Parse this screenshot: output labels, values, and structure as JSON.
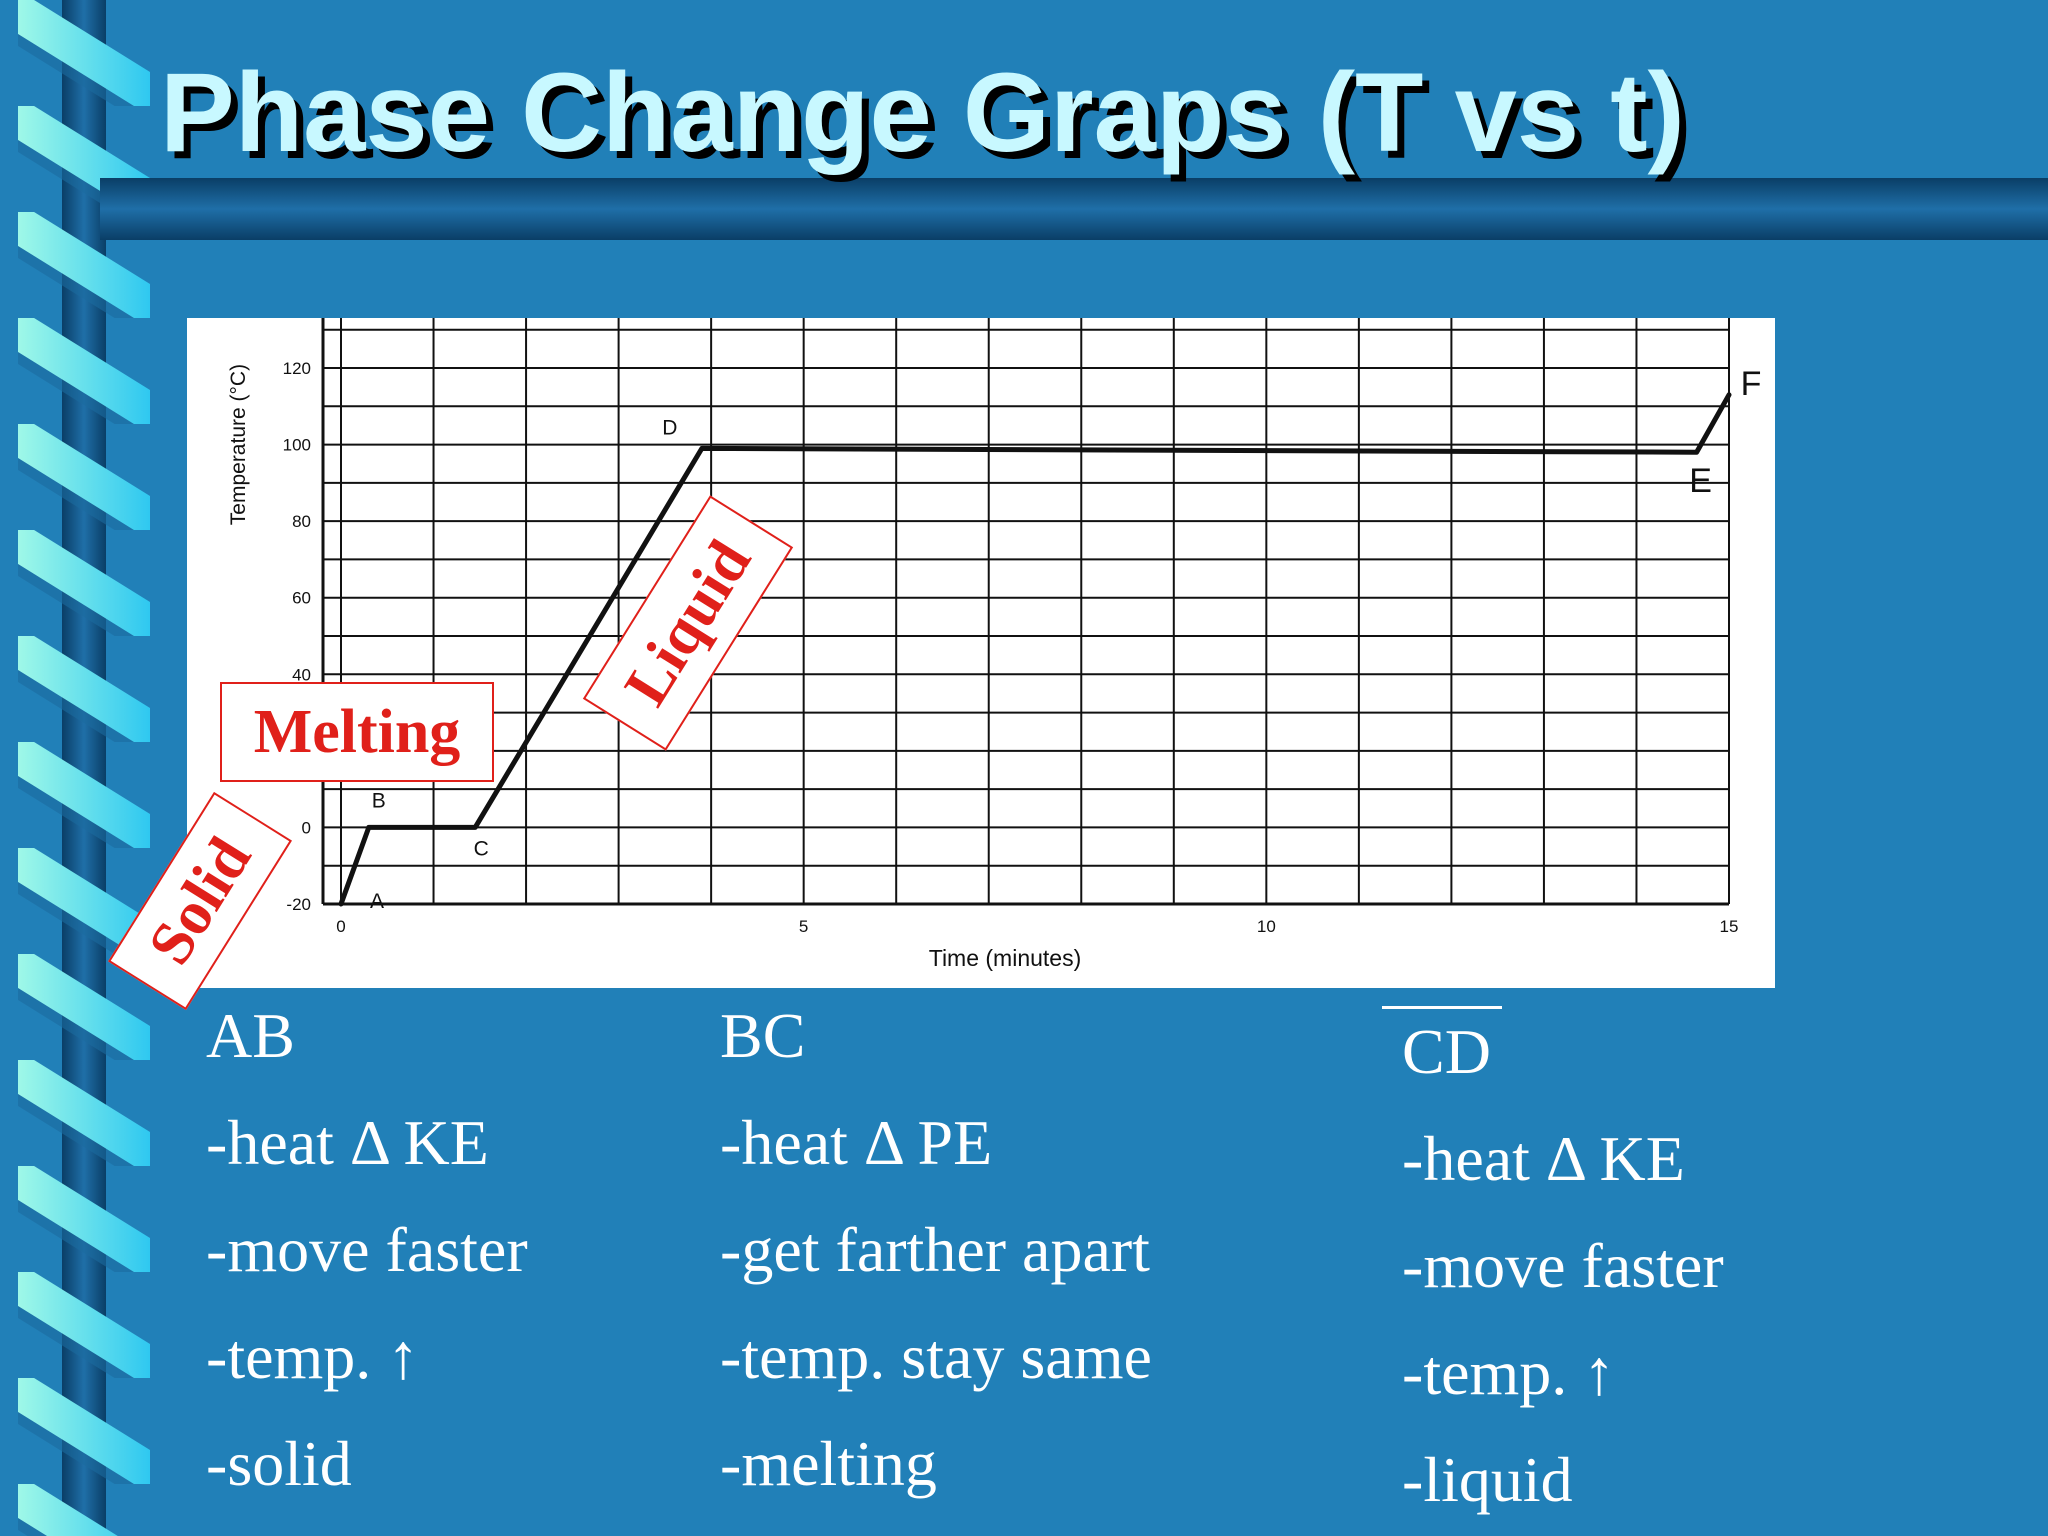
{
  "slide": {
    "title": "Phase Change Graps (T vs t)",
    "colors": {
      "background": "#2180b8",
      "title_text": "#c8f8ff",
      "ribbon": "#7ff2e0",
      "label_red": "#e0201a"
    }
  },
  "chart_data": {
    "type": "line",
    "title": "",
    "xlabel": "Time (minutes)",
    "ylabel": "Temperature (°C)",
    "xlim": [
      0,
      15
    ],
    "ylim": [
      -20,
      120
    ],
    "x_ticks": [
      0,
      5,
      10,
      15
    ],
    "y_ticks": [
      -20,
      0,
      40,
      60,
      80,
      100,
      120
    ],
    "grid": true,
    "series": [
      {
        "values": [
          {
            "x": 0,
            "y": -20
          },
          {
            "x": 0.3,
            "y": 0
          },
          {
            "x": 1.45,
            "y": 0
          },
          {
            "x": 3.9,
            "y": 99
          },
          {
            "x": 14.65,
            "y": 98
          },
          {
            "x": 15,
            "y": 113
          }
        ]
      }
    ],
    "point_labels": [
      {
        "label": "A",
        "x": 0,
        "y": -20
      },
      {
        "label": "B",
        "x": 0.3,
        "y": 0
      },
      {
        "label": "C",
        "x": 1.45,
        "y": 0
      },
      {
        "label": "D",
        "x": 3.9,
        "y": 99
      },
      {
        "label": "E",
        "x": 14.65,
        "y": 98
      },
      {
        "label": "F",
        "x": 15,
        "y": 113
      }
    ],
    "annotations": [
      "Melting",
      "Liquid",
      "Solid"
    ]
  },
  "notes": {
    "ab": {
      "heading": "AB",
      "lines": [
        "-heat Δ KE",
        "-move faster",
        "-temp. ↑",
        "-solid"
      ]
    },
    "bc": {
      "heading": "BC",
      "lines": [
        "-heat Δ PE",
        "-get farther apart",
        "-temp. stay same",
        "-melting"
      ]
    },
    "cd": {
      "heading": "CD",
      "lines": [
        "-heat Δ KE",
        "-move faster",
        "-temp. ↑",
        "-liquid"
      ]
    }
  }
}
